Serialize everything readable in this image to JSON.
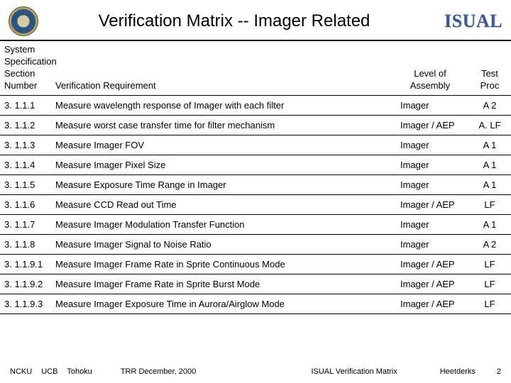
{
  "header": {
    "title": "Verification Matrix -- Imager Related",
    "logo_text": "ISUAL"
  },
  "table": {
    "columns": {
      "c1": "System Specification Section Number",
      "c2": "Verification Requirement",
      "c3": "Level of Assembly",
      "c4": "Test Proc"
    },
    "rows": [
      {
        "c1": "3. 1.1.1",
        "c2": "Measure wavelength response of Imager with each filter",
        "c3": "Imager",
        "c4": "A 2"
      },
      {
        "c1": "3. 1.1.2",
        "c2": "Measure worst case transfer time for filter mechanism",
        "c3": "Imager / AEP",
        "c4": "A. LF"
      },
      {
        "c1": "3. 1.1.3",
        "c2": "Measure Imager FOV",
        "c3": "Imager",
        "c4": "A 1"
      },
      {
        "c1": "3. 1.1.4",
        "c2": "Measure Imager Pixel Size",
        "c3": "Imager",
        "c4": "A 1"
      },
      {
        "c1": "3. 1.1.5",
        "c2": "Measure Exposure Time Range in Imager",
        "c3": "Imager",
        "c4": "A 1"
      },
      {
        "c1": "3. 1.1.6",
        "c2": "Measure CCD Read out Time",
        "c3": "Imager / AEP",
        "c4": "LF"
      },
      {
        "c1": "3. 1.1.7",
        "c2": "Measure Imager Modulation Transfer Function",
        "c3": "Imager",
        "c4": "A 1"
      },
      {
        "c1": "3. 1.1.8",
        "c2": "Measure Imager Signal to Noise Ratio",
        "c3": "Imager",
        "c4": "A 2"
      },
      {
        "c1": "3. 1.1.9.1",
        "c2": "Measure Imager Frame Rate in Sprite Continuous Mode",
        "c3": "Imager / AEP",
        "c4": "LF"
      },
      {
        "c1": "3. 1.1.9.2",
        "c2": "Measure Imager Frame Rate in Sprite Burst Mode",
        "c3": "Imager / AEP",
        "c4": "LF"
      },
      {
        "c1": "3. 1.1.9.3",
        "c2": "Measure Imager Exposure Time in Aurora/Airglow Mode",
        "c3": "Imager / AEP",
        "c4": "LF"
      }
    ]
  },
  "footer": {
    "org1": "NCKU",
    "org2": "UCB",
    "org3": "Tohoku",
    "event": "TRR   December, 2000",
    "doc": "ISUAL Verification Matrix",
    "author": "Heetderks",
    "page": "2"
  }
}
